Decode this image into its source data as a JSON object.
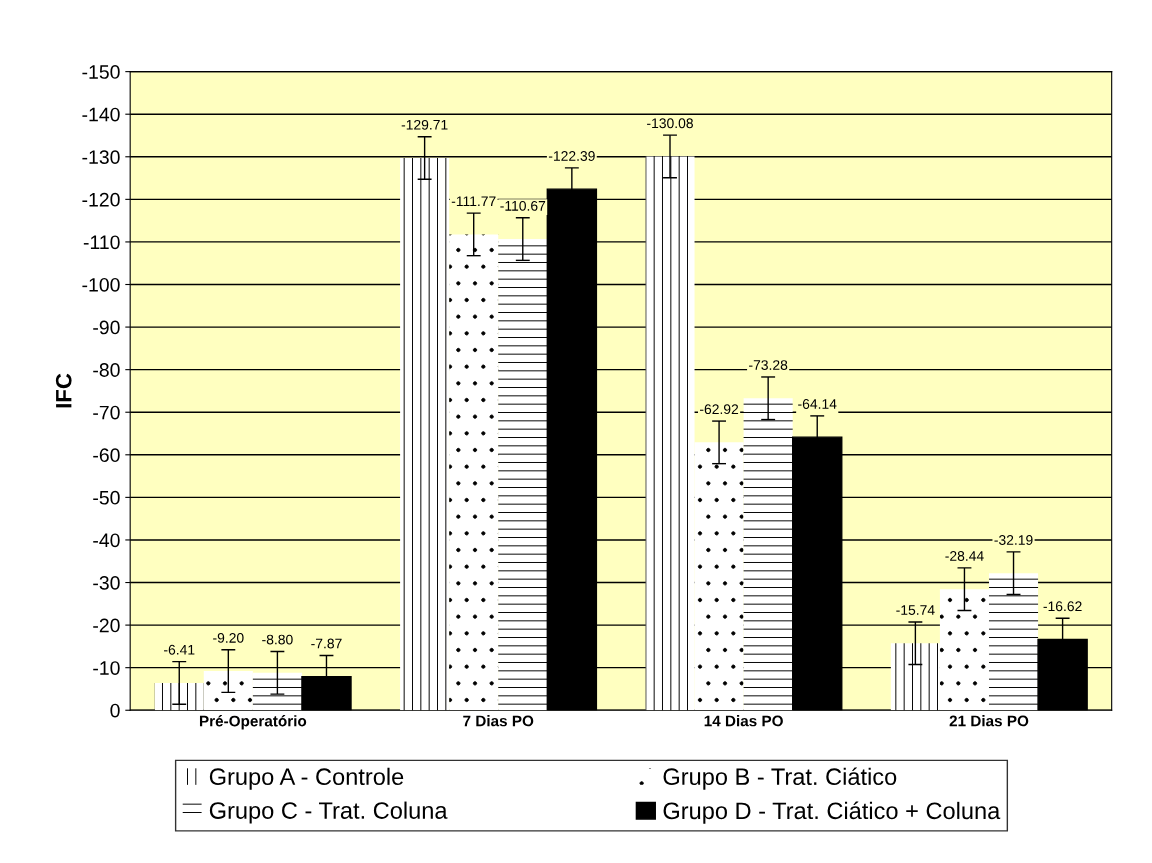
{
  "chart_data": {
    "type": "bar",
    "ylabel": "IFC",
    "categories": [
      "Pré-Operatório",
      "7 Dias PO",
      "14 Dias PO",
      "21 Dias PO"
    ],
    "series": [
      {
        "name": "Grupo A - Controle",
        "color": "#ffffff",
        "values": [
          -6.41,
          -129.71,
          -130.08,
          -15.74
        ],
        "errors": [
          5,
          5,
          5,
          5
        ],
        "value_labels": [
          "-6.41",
          "-129.71",
          "-130.08",
          "-15.74"
        ]
      },
      {
        "name": "Grupo B - Trat. Ciático",
        "color": "#ffffff",
        "values": [
          -9.2,
          -111.77,
          -62.92,
          -28.44
        ],
        "errors": [
          5,
          5,
          5,
          5
        ],
        "value_labels": [
          "-9.20",
          "-111.77",
          "-62.92",
          "-28.44"
        ]
      },
      {
        "name": "Grupo C - Trat. Coluna",
        "color": "#ffffff",
        "values": [
          -8.8,
          -110.67,
          -73.28,
          -32.19
        ],
        "errors": [
          5,
          5,
          5,
          5
        ],
        "value_labels": [
          "-8.80",
          "-110.67",
          "-73.28",
          "-32.19"
        ]
      },
      {
        "name": "Grupo D - Trat. Ciático + Coluna",
        "color": "#000000",
        "values": [
          -7.87,
          -122.39,
          -64.14,
          -16.62
        ],
        "errors": [
          5,
          5,
          5,
          5
        ],
        "value_labels": [
          "-7.87",
          "-122.39",
          "-64.14",
          "-16.62"
        ]
      }
    ],
    "ylim": [
      0,
      -150
    ],
    "yticks": [
      0,
      -10,
      -20,
      -30,
      -40,
      -50,
      -60,
      -70,
      -80,
      -90,
      -100,
      -110,
      -120,
      -130,
      -140,
      -150
    ],
    "grid": "y",
    "legend": "bottom"
  }
}
